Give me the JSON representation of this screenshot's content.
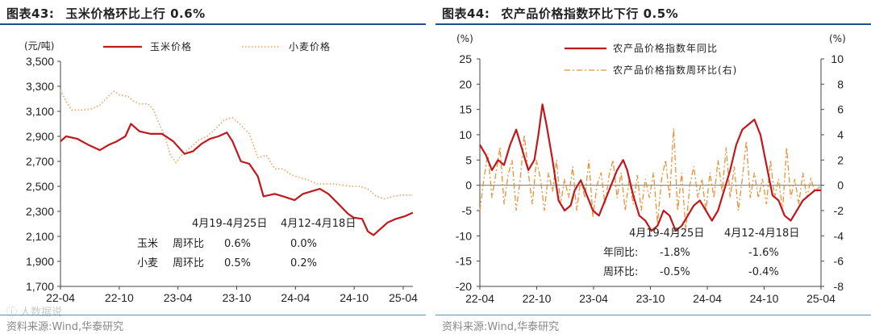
{
  "left": {
    "title_prefix": "图表43:",
    "title_text": "玉米价格环比上行 0.6%",
    "source": "资料来源:Wind,华泰研究",
    "watermark": "ⓘ 人数据说",
    "chart_data": {
      "type": "line",
      "yunit": "(元/吨)",
      "ylim": [
        1700,
        3500
      ],
      "yticks": [
        "1,700",
        "1,900",
        "2,100",
        "2,300",
        "2,500",
        "2,700",
        "2,900",
        "3,100",
        "3,300",
        "3,500"
      ],
      "xticks": [
        "22-04",
        "22-10",
        "23-04",
        "23-10",
        "24-04",
        "24-10",
        "25-04"
      ],
      "grid": false,
      "legend_position": "top",
      "series": [
        {
          "name": "玉米价格",
          "color": "#c0181d",
          "style": "solid",
          "points": [
            [
              0,
              2860
            ],
            [
              2,
              2900
            ],
            [
              6,
              2880
            ],
            [
              10,
              2830
            ],
            [
              14,
              2790
            ],
            [
              17,
              2830
            ],
            [
              20,
              2860
            ],
            [
              23,
              2900
            ],
            [
              25,
              3000
            ],
            [
              28,
              2940
            ],
            [
              32,
              2920
            ],
            [
              36,
              2920
            ],
            [
              40,
              2860
            ],
            [
              44,
              2760
            ],
            [
              47,
              2780
            ],
            [
              50,
              2840
            ],
            [
              53,
              2880
            ],
            [
              56,
              2900
            ],
            [
              59,
              2930
            ],
            [
              61,
              2860
            ],
            [
              64,
              2700
            ],
            [
              67,
              2680
            ],
            [
              70,
              2580
            ],
            [
              72,
              2420
            ],
            [
              76,
              2440
            ],
            [
              79,
              2420
            ],
            [
              83,
              2390
            ],
            [
              86,
              2440
            ],
            [
              89,
              2460
            ],
            [
              92,
              2480
            ],
            [
              95,
              2440
            ],
            [
              99,
              2350
            ],
            [
              102,
              2280
            ],
            [
              104,
              2250
            ],
            [
              107,
              2240
            ],
            [
              109,
              2140
            ],
            [
              111,
              2110
            ],
            [
              113,
              2150
            ],
            [
              116,
              2210
            ],
            [
              119,
              2240
            ],
            [
              122,
              2260
            ],
            [
              125,
              2290
            ]
          ]
        },
        {
          "name": "小麦价格",
          "color": "#f0a060",
          "style": "dotted",
          "points": [
            [
              0,
              3270
            ],
            [
              2,
              3180
            ],
            [
              4,
              3110
            ],
            [
              8,
              3110
            ],
            [
              11,
              3120
            ],
            [
              14,
              3150
            ],
            [
              17,
              3220
            ],
            [
              19,
              3260
            ],
            [
              21,
              3230
            ],
            [
              24,
              3220
            ],
            [
              26,
              3180
            ],
            [
              28,
              3160
            ],
            [
              31,
              3160
            ],
            [
              33,
              3110
            ],
            [
              35,
              3000
            ],
            [
              37,
              2900
            ],
            [
              39,
              2750
            ],
            [
              41,
              2690
            ],
            [
              43,
              2750
            ],
            [
              46,
              2810
            ],
            [
              49,
              2870
            ],
            [
              52,
              2900
            ],
            [
              55,
              2960
            ],
            [
              58,
              3030
            ],
            [
              61,
              3050
            ],
            [
              64,
              2990
            ],
            [
              67,
              2920
            ],
            [
              70,
              2730
            ],
            [
              73,
              2750
            ],
            [
              76,
              2640
            ],
            [
              79,
              2640
            ],
            [
              82,
              2590
            ],
            [
              85,
              2570
            ],
            [
              88,
              2550
            ],
            [
              91,
              2520
            ],
            [
              94,
              2520
            ],
            [
              97,
              2520
            ],
            [
              100,
              2510
            ],
            [
              103,
              2500
            ],
            [
              106,
              2500
            ],
            [
              109,
              2480
            ],
            [
              112,
              2420
            ],
            [
              115,
              2400
            ],
            [
              118,
              2420
            ],
            [
              121,
              2430
            ],
            [
              125,
              2430
            ]
          ]
        }
      ]
    },
    "legend": {
      "corn": "玉米价格",
      "wheat": "小麦价格"
    },
    "table": {
      "col1": "4月19-4月25日",
      "col2": "4月12-4月18日",
      "rows": [
        {
          "label": "玉米",
          "metric": "周环比",
          "v1": "0.6%",
          "v2": "0.0%"
        },
        {
          "label": "小麦",
          "metric": "周环比",
          "v1": "0.5%",
          "v2": "0.2%"
        }
      ]
    }
  },
  "right": {
    "title_prefix": "图表44:",
    "title_text": "农产品价格指数环比下行 0.5%",
    "source": "资料来源:Wind,华泰研究",
    "chart_data": {
      "type": "line",
      "yunit_left": "(%)",
      "yunit_right": "(%)",
      "ylim_left": [
        -20,
        25
      ],
      "ylim_right": [
        -8,
        10
      ],
      "yticks_left": [
        "-20",
        "-15",
        "-10",
        "-5",
        "0",
        "5",
        "10",
        "15",
        "20",
        "25"
      ],
      "yticks_right": [
        "-8",
        "-6",
        "-4",
        "-2",
        "0",
        "2",
        "4",
        "6",
        "8",
        "10"
      ],
      "xticks": [
        "22-04",
        "22-10",
        "23-04",
        "23-10",
        "24-04",
        "24-10",
        "25-04"
      ],
      "zero_line": true,
      "series": [
        {
          "name": "农产品价格指数年同比",
          "axis": "left",
          "color": "#c0181d",
          "style": "solid",
          "points": [
            [
              0,
              8
            ],
            [
              3,
              6
            ],
            [
              6,
              3
            ],
            [
              9,
              5
            ],
            [
              12,
              4
            ],
            [
              15,
              8
            ],
            [
              18,
              11
            ],
            [
              21,
              7
            ],
            [
              24,
              3
            ],
            [
              27,
              5
            ],
            [
              29,
              10
            ],
            [
              31,
              16
            ],
            [
              33,
              12
            ],
            [
              36,
              5
            ],
            [
              39,
              -3
            ],
            [
              42,
              -5
            ],
            [
              45,
              -4
            ],
            [
              47,
              -1
            ],
            [
              50,
              1
            ],
            [
              53,
              -2
            ],
            [
              56,
              -5
            ],
            [
              59,
              -6
            ],
            [
              62,
              -3
            ],
            [
              65,
              0
            ],
            [
              68,
              3
            ],
            [
              71,
              5
            ],
            [
              73,
              3
            ],
            [
              76,
              -2
            ],
            [
              79,
              -6
            ],
            [
              82,
              -7
            ],
            [
              85,
              -9
            ],
            [
              88,
              -8
            ],
            [
              91,
              -5
            ],
            [
              94,
              -6
            ],
            [
              97,
              -9
            ],
            [
              100,
              -8
            ],
            [
              103,
              -6
            ],
            [
              106,
              -4
            ],
            [
              109,
              -3
            ],
            [
              112,
              -5
            ],
            [
              115,
              -7
            ],
            [
              118,
              -5
            ],
            [
              121,
              -1
            ],
            [
              124,
              3
            ],
            [
              127,
              8
            ],
            [
              130,
              11
            ],
            [
              133,
              12
            ],
            [
              136,
              13
            ],
            [
              139,
              10
            ],
            [
              142,
              4
            ],
            [
              145,
              -2
            ],
            [
              148,
              -3
            ],
            [
              151,
              -6
            ],
            [
              154,
              -7
            ],
            [
              157,
              -5
            ],
            [
              160,
              -3
            ],
            [
              163,
              -2
            ],
            [
              166,
              -1
            ],
            [
              169,
              -1
            ]
          ]
        },
        {
          "name": "农产品价格指数周环比(右)",
          "axis": "right",
          "color": "#e8913a",
          "style": "dashdot",
          "points": [
            [
              0,
              -2
            ],
            [
              2,
              0.5
            ],
            [
              4,
              2.5
            ],
            [
              6,
              -1
            ],
            [
              8,
              1
            ],
            [
              10,
              3
            ],
            [
              12,
              -1.5
            ],
            [
              14,
              0.8
            ],
            [
              16,
              2
            ],
            [
              18,
              -2
            ],
            [
              20,
              0.5
            ],
            [
              22,
              4
            ],
            [
              24,
              1
            ],
            [
              26,
              -1.5
            ],
            [
              28,
              2
            ],
            [
              30,
              0.5
            ],
            [
              32,
              -2
            ],
            [
              34,
              1
            ],
            [
              36,
              -0.5
            ],
            [
              38,
              2
            ],
            [
              40,
              -1.5
            ],
            [
              42,
              0.5
            ],
            [
              44,
              -1
            ],
            [
              46,
              1.5
            ],
            [
              48,
              -2
            ],
            [
              50,
              0.5
            ],
            [
              52,
              -1
            ],
            [
              54,
              2
            ],
            [
              56,
              -2.5
            ],
            [
              58,
              0
            ],
            [
              60,
              1
            ],
            [
              62,
              -1.5
            ],
            [
              64,
              0.8
            ],
            [
              66,
              2
            ],
            [
              68,
              -1
            ],
            [
              70,
              1
            ],
            [
              72,
              -2
            ],
            [
              74,
              0.5
            ],
            [
              76,
              -1.5
            ],
            [
              78,
              0.8
            ],
            [
              80,
              -2
            ],
            [
              82,
              0.5
            ],
            [
              84,
              -1
            ],
            [
              86,
              1
            ],
            [
              88,
              -3
            ],
            [
              90,
              0.5
            ],
            [
              92,
              2
            ],
            [
              94,
              -1
            ],
            [
              96,
              4.5
            ],
            [
              98,
              -2
            ],
            [
              100,
              1
            ],
            [
              102,
              -3.5
            ],
            [
              104,
              0
            ],
            [
              106,
              1.5
            ],
            [
              108,
              -1
            ],
            [
              110,
              0.5
            ],
            [
              112,
              -2
            ],
            [
              114,
              1
            ],
            [
              116,
              -1
            ],
            [
              118,
              2
            ],
            [
              120,
              -0.5
            ],
            [
              122,
              3
            ],
            [
              124,
              -1
            ],
            [
              126,
              1.5
            ],
            [
              128,
              -2
            ],
            [
              130,
              0.5
            ],
            [
              132,
              3.5
            ],
            [
              134,
              -1
            ],
            [
              136,
              1
            ],
            [
              138,
              -1
            ],
            [
              140,
              0.5
            ],
            [
              142,
              -1.5
            ],
            [
              144,
              2
            ],
            [
              146,
              -1
            ],
            [
              148,
              0.5
            ],
            [
              150,
              -2
            ],
            [
              152,
              3
            ],
            [
              154,
              -1
            ],
            [
              156,
              0.5
            ],
            [
              158,
              -1.5
            ],
            [
              160,
              1
            ],
            [
              162,
              -1
            ],
            [
              164,
              0.5
            ],
            [
              166,
              -0.5
            ],
            [
              169,
              0
            ]
          ]
        }
      ]
    },
    "legend": {
      "yoy": "农产品价格指数年同比",
      "wow": "农产品价格指数周环比(右)"
    },
    "table": {
      "col1": "4月19-4月25日",
      "col2": "4月12-4月18日",
      "rows": [
        {
          "label": "年同比:",
          "v1": "-1.8%",
          "v2": "-1.6%"
        },
        {
          "label": "周环比:",
          "v1": "-0.5%",
          "v2": "-0.4%"
        }
      ]
    }
  }
}
